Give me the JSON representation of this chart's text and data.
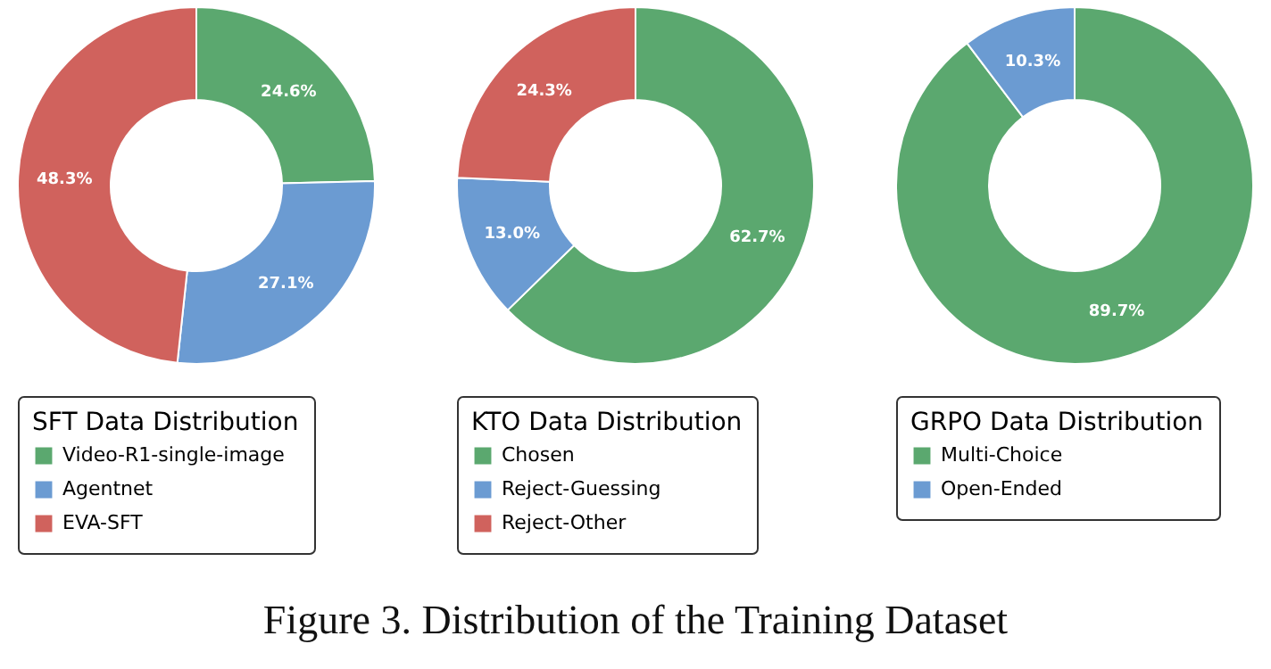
{
  "chart_data": [
    {
      "type": "donut",
      "legend_title": "SFT Data Distribution",
      "legend": "bottom",
      "categories": [
        "Video-R1-single-image",
        "Agentnet",
        "EVA-SFT"
      ],
      "values": [
        24.6,
        27.1,
        48.3
      ],
      "value_labels": [
        "24.6%",
        "27.1%",
        "48.3%"
      ],
      "colors": [
        "#5ba86f",
        "#6b9bd2",
        "#d0625d"
      ]
    },
    {
      "type": "donut",
      "legend_title": "KTO Data Distribution",
      "legend": "bottom",
      "categories": [
        "Chosen",
        "Reject-Guessing",
        "Reject-Other"
      ],
      "values": [
        62.7,
        13.0,
        24.3
      ],
      "value_labels": [
        "62.7%",
        "13.0%",
        "24.3%"
      ],
      "colors": [
        "#5ba86f",
        "#6b9bd2",
        "#d0625d"
      ],
      "annotations": [
        "Figure 3. Distribution of the Training Dataset"
      ]
    },
    {
      "type": "donut",
      "legend_title": "GRPO Data Distribution",
      "legend": "bottom",
      "categories": [
        "Multi-Choice",
        "Open-Ended"
      ],
      "values": [
        89.7,
        10.3
      ],
      "value_labels": [
        "89.7%",
        "10.3%"
      ],
      "colors": [
        "#5ba86f",
        "#6b9bd2"
      ]
    }
  ]
}
